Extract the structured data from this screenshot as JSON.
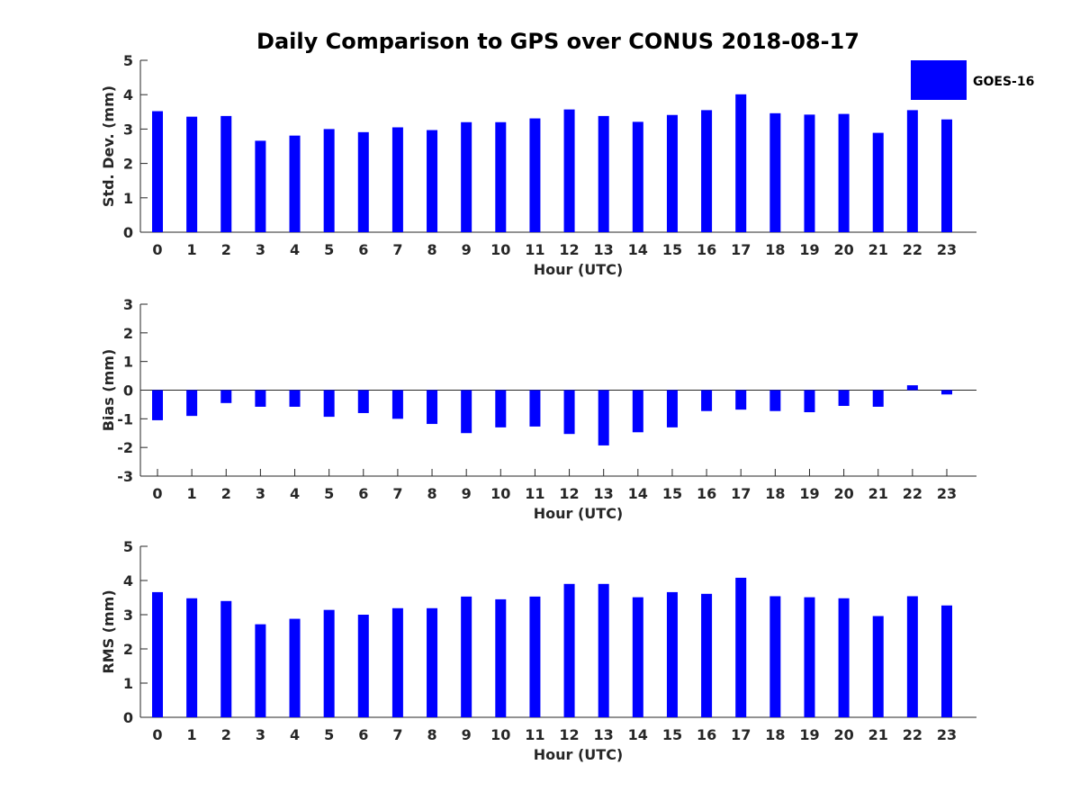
{
  "figure": {
    "title": "Daily Comparison to GPS over CONUS 2018-08-17",
    "bar_color": "#0000ff",
    "legend": {
      "label": "GOES-16",
      "placement": "top-right"
    }
  },
  "chart_data": [
    {
      "type": "bar",
      "categories": [
        "0",
        "1",
        "2",
        "3",
        "4",
        "5",
        "6",
        "7",
        "8",
        "9",
        "10",
        "11",
        "12",
        "13",
        "14",
        "15",
        "16",
        "17",
        "18",
        "19",
        "20",
        "21",
        "22",
        "23"
      ],
      "series": [
        {
          "name": "GOES-16",
          "values": [
            3.52,
            3.36,
            3.38,
            2.66,
            2.81,
            3.0,
            2.91,
            3.05,
            2.97,
            3.2,
            3.2,
            3.31,
            3.57,
            3.38,
            3.21,
            3.41,
            3.55,
            4.01,
            3.46,
            3.42,
            3.44,
            2.89,
            3.55,
            3.28
          ]
        }
      ],
      "xlabel": "Hour (UTC)",
      "ylabel": "Std. Dev. (mm)",
      "ylim": [
        0,
        5
      ],
      "yticks": [
        "0",
        "1",
        "2",
        "3",
        "4",
        "5"
      ],
      "grid": false
    },
    {
      "type": "bar",
      "categories": [
        "0",
        "1",
        "2",
        "3",
        "4",
        "5",
        "6",
        "7",
        "8",
        "9",
        "10",
        "11",
        "12",
        "13",
        "14",
        "15",
        "16",
        "17",
        "18",
        "19",
        "20",
        "21",
        "22",
        "23"
      ],
      "series": [
        {
          "name": "GOES-16",
          "values": [
            -1.05,
            -0.9,
            -0.45,
            -0.58,
            -0.58,
            -0.93,
            -0.8,
            -1.0,
            -1.18,
            -1.5,
            -1.3,
            -1.27,
            -1.53,
            -1.93,
            -1.47,
            -1.3,
            -0.73,
            -0.68,
            -0.73,
            -0.77,
            -0.55,
            -0.58,
            0.17,
            -0.15
          ]
        }
      ],
      "xlabel": "Hour (UTC)",
      "ylabel": "Bias (mm)",
      "ylim": [
        -3,
        3
      ],
      "yticks": [
        "-3",
        "-2",
        "-1",
        "0",
        "1",
        "2",
        "3"
      ],
      "grid": false
    },
    {
      "type": "bar",
      "categories": [
        "0",
        "1",
        "2",
        "3",
        "4",
        "5",
        "6",
        "7",
        "8",
        "9",
        "10",
        "11",
        "12",
        "13",
        "14",
        "15",
        "16",
        "17",
        "18",
        "19",
        "20",
        "21",
        "22",
        "23"
      ],
      "series": [
        {
          "name": "GOES-16",
          "values": [
            3.66,
            3.48,
            3.4,
            2.72,
            2.88,
            3.14,
            3.0,
            3.19,
            3.19,
            3.53,
            3.45,
            3.53,
            3.9,
            3.9,
            3.51,
            3.66,
            3.61,
            4.08,
            3.54,
            3.51,
            3.48,
            2.96,
            3.54,
            3.27
          ]
        }
      ],
      "xlabel": "Hour (UTC)",
      "ylabel": "RMS (mm)",
      "ylim": [
        0,
        5
      ],
      "yticks": [
        "0",
        "1",
        "2",
        "3",
        "4",
        "5"
      ],
      "grid": false
    }
  ]
}
